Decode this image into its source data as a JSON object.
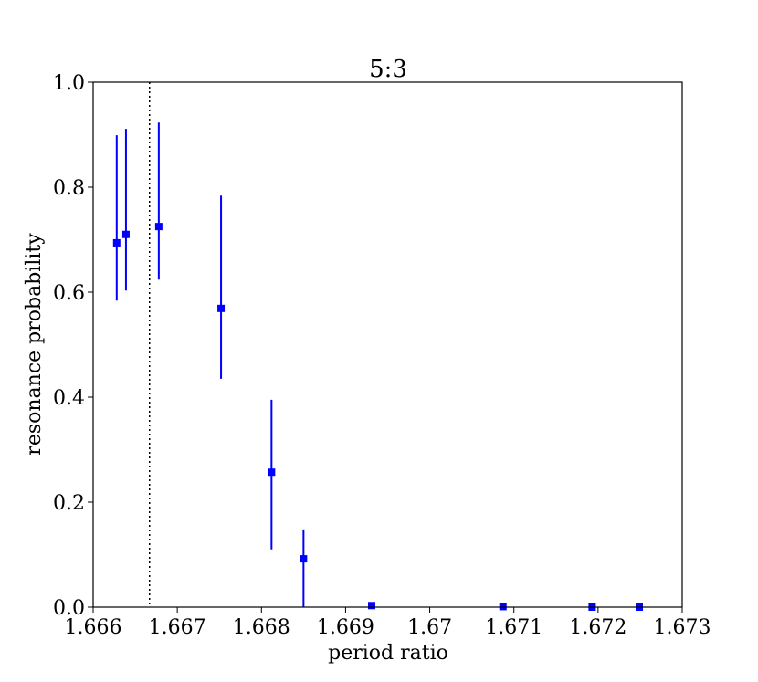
{
  "chart_data": {
    "type": "scatter",
    "title": "5:3",
    "x_label": "period ratio",
    "y_label": "resonance probability",
    "x": [
      1.66628,
      1.66639,
      1.66678,
      1.66752,
      1.66812,
      1.6685,
      1.66931,
      1.67087,
      1.67193,
      1.67249
    ],
    "values": [
      0.694,
      0.71,
      0.725,
      0.569,
      0.257,
      0.092,
      0.003,
      0.001,
      0,
      0
    ],
    "err_minus": [
      0.11,
      0.107,
      0.101,
      0.134,
      0.147,
      0.092,
      0,
      0,
      0,
      0
    ],
    "err_plus": [
      0.205,
      0.201,
      0.198,
      0.215,
      0.138,
      0.056,
      0,
      0,
      0,
      0
    ],
    "color": "#0000ff",
    "vline": 1.66667,
    "xlim": [
      1.666,
      1.673
    ],
    "xticks": [
      1.666,
      1.667,
      1.668,
      1.669,
      1.67,
      1.671,
      1.672,
      1.673
    ],
    "ylim": [
      0,
      1
    ],
    "yticks": [
      {
        "value": 0,
        "label": "0.0"
      },
      0.2,
      0.4,
      0.6,
      0.8,
      {
        "value": 1,
        "label": "1.0"
      }
    ],
    "grid": false
  }
}
